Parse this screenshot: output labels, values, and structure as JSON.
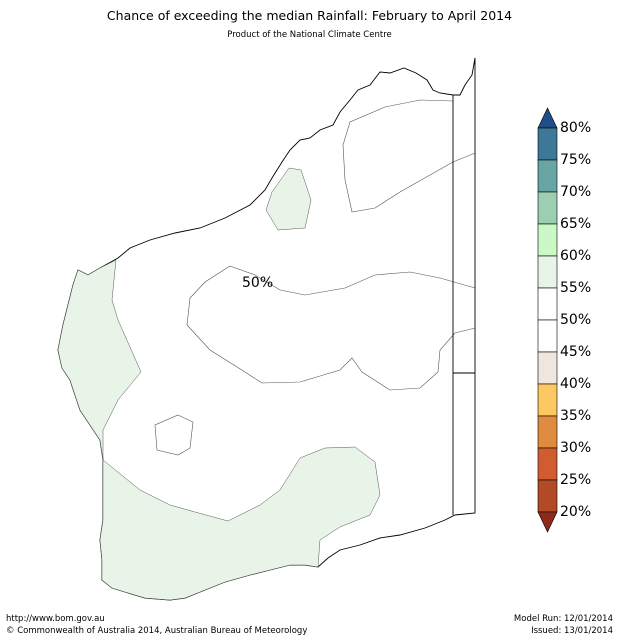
{
  "header": {
    "title": "Chance of exceeding the median Rainfall: February to April 2014",
    "subtitle": "Product of the National Climate Centre"
  },
  "map": {
    "region": "Western Australia",
    "contour_label": "50%",
    "colors": {
      "coast": "#000000",
      "contour": "#555555",
      "band_55_60": "#e8f4e8"
    }
  },
  "legend": {
    "labels": [
      "80%",
      "75%",
      "70%",
      "65%",
      "60%",
      "55%",
      "50%",
      "45%",
      "40%",
      "35%",
      "30%",
      "25%",
      "20%"
    ],
    "bands": [
      {
        "range": "75-80",
        "color": "#3d7898"
      },
      {
        "range": "70-75",
        "color": "#6aa5a5"
      },
      {
        "range": "65-70",
        "color": "#9ccfb2"
      },
      {
        "range": "60-65",
        "color": "#ccf8c8"
      },
      {
        "range": "55-60",
        "color": "#e8f4e8"
      },
      {
        "range": "50-55",
        "color": "#ffffff"
      },
      {
        "range": "45-50",
        "color": "#ffffff"
      },
      {
        "range": "40-45",
        "color": "#efe7df"
      },
      {
        "range": "35-40",
        "color": "#fbc862"
      },
      {
        "range": "30-35",
        "color": "#e08c40"
      },
      {
        "range": "25-30",
        "color": "#d15c30"
      },
      {
        "range": "20-25",
        "color": "#b24a26"
      }
    ],
    "top_arrow_color": "#1f4e88",
    "bottom_arrow_color": "#8e2a1a"
  },
  "footer": {
    "url": "http://www.bom.gov.au",
    "copyright": "©  Commonwealth of Australia 2014, Australian Bureau of Meteorology",
    "model_run": "Model Run: 12/01/2014",
    "issued": "Issued: 13/01/2014"
  }
}
